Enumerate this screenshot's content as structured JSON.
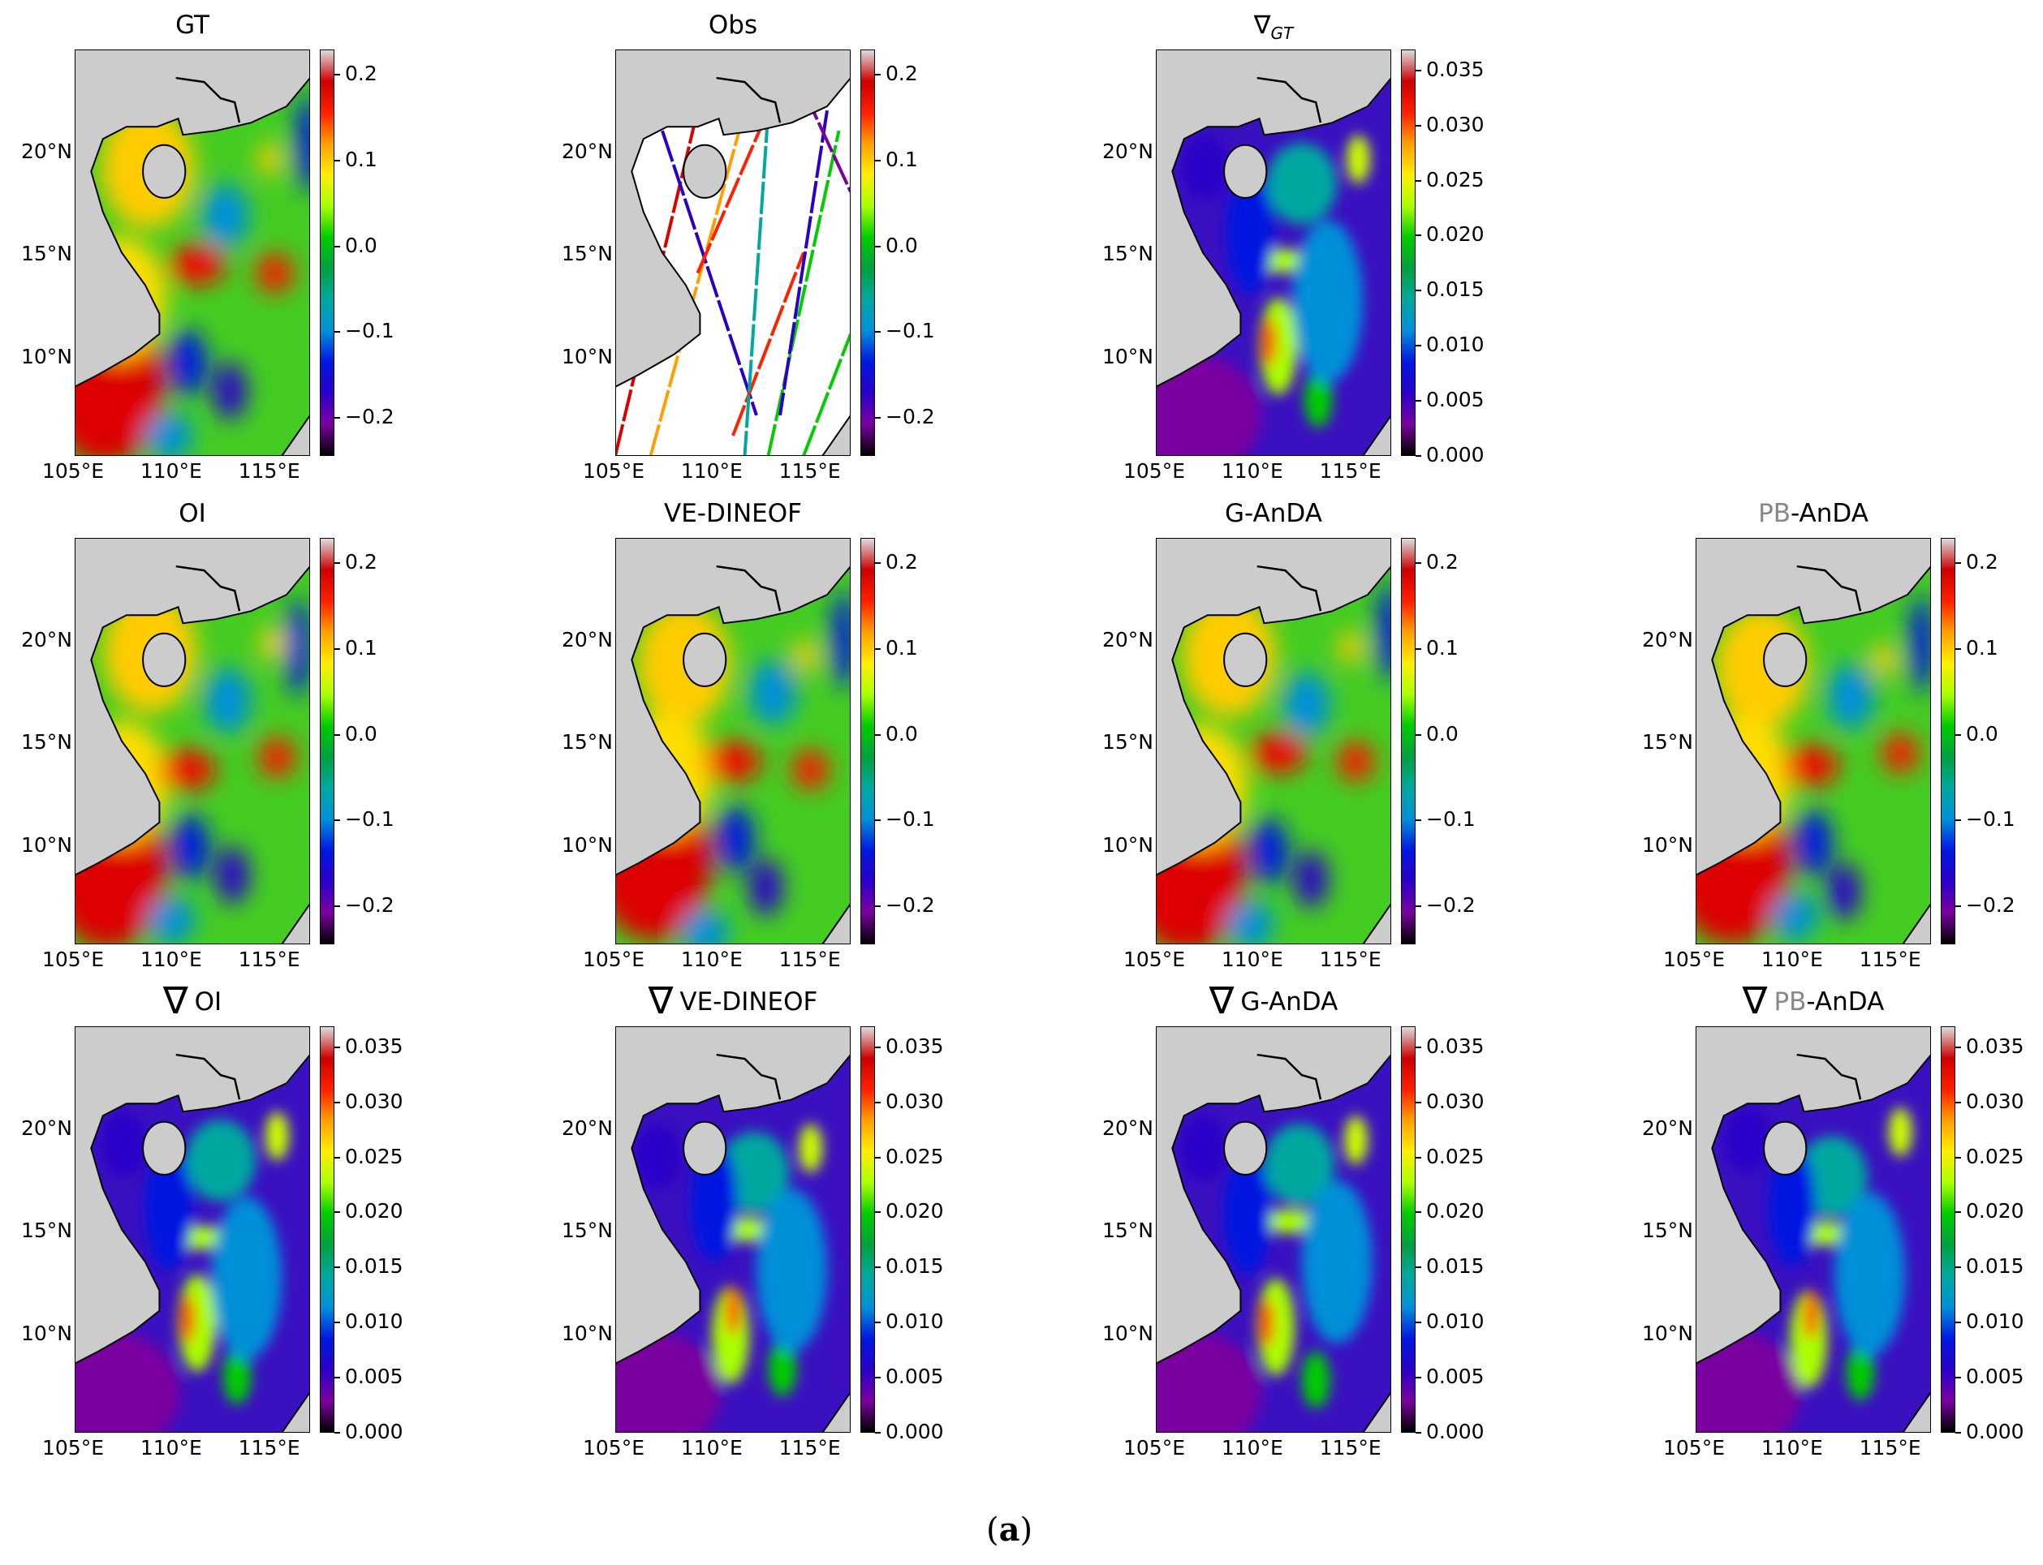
{
  "figure": {
    "caption": "(a)",
    "caption_letter": "a"
  },
  "colors": {
    "land": "#cccccc",
    "coast": "#000000",
    "missing": "#ffffff"
  },
  "chart_data": {
    "type": "heatmap",
    "colormap": [
      "#000000",
      "#7a00a0",
      "#2a00c8",
      "#0018e0",
      "#0090d8",
      "#00a8a0",
      "#00a040",
      "#00cc00",
      "#aaff00",
      "#ffee00",
      "#ffa000",
      "#ff2000",
      "#cc0000",
      "#dddddd"
    ],
    "xticks": [
      "105°E",
      "110°E",
      "115°E"
    ],
    "xtick_values": [
      105,
      110,
      115
    ],
    "yticks": [
      "20°N",
      "15°N",
      "10°N"
    ],
    "ytick_values": [
      20,
      15,
      10
    ],
    "lon_range": [
      105,
      117
    ],
    "lat_range": [
      5.2,
      25
    ],
    "ssh_colorbar": {
      "ticks": [
        "0.2",
        "0.1",
        "0.0",
        "−0.1",
        "−0.2"
      ],
      "values": [
        0.2,
        0.1,
        0,
        -0.1,
        -0.2
      ],
      "range": [
        -0.244,
        0.229
      ]
    },
    "grad_colorbar": {
      "ticks": [
        "0.035",
        "0.030",
        "0.025",
        "0.020",
        "0.015",
        "0.010",
        "0.005",
        "0.000"
      ],
      "values": [
        0.035,
        0.03,
        0.025,
        0.02,
        0.015,
        0.01,
        0.005,
        0
      ],
      "range": [
        0,
        0.0369
      ]
    },
    "panels": [
      {
        "row": 0,
        "col": 0,
        "title": "GT",
        "kind": "ssh"
      },
      {
        "row": 0,
        "col": 1,
        "title": "Obs",
        "kind": "obs"
      },
      {
        "row": 0,
        "col": 2,
        "title_nabla": "∇",
        "title_sub": "GT",
        "kind": "grad"
      },
      {
        "row": 1,
        "col": 0,
        "title": "OI",
        "kind": "ssh"
      },
      {
        "row": 1,
        "col": 1,
        "title": "VE-DINEOF",
        "kind": "ssh"
      },
      {
        "row": 1,
        "col": 2,
        "title": "G-AnDA",
        "kind": "ssh"
      },
      {
        "row": 1,
        "col": 3,
        "title_gray": "PB",
        "title": "-AnDA",
        "kind": "ssh"
      },
      {
        "row": 2,
        "col": 0,
        "title_nabla": "∇",
        "title": "OI",
        "kind": "grad"
      },
      {
        "row": 2,
        "col": 1,
        "title_nabla": "∇",
        "title": "VE-DINEOF",
        "kind": "grad"
      },
      {
        "row": 2,
        "col": 2,
        "title_nabla": "∇",
        "title": "G-AnDA",
        "kind": "grad"
      },
      {
        "row": 2,
        "col": 3,
        "title_nabla": "∇",
        "title_gray": "PB",
        "title": "-AnDA",
        "kind": "grad"
      }
    ]
  }
}
